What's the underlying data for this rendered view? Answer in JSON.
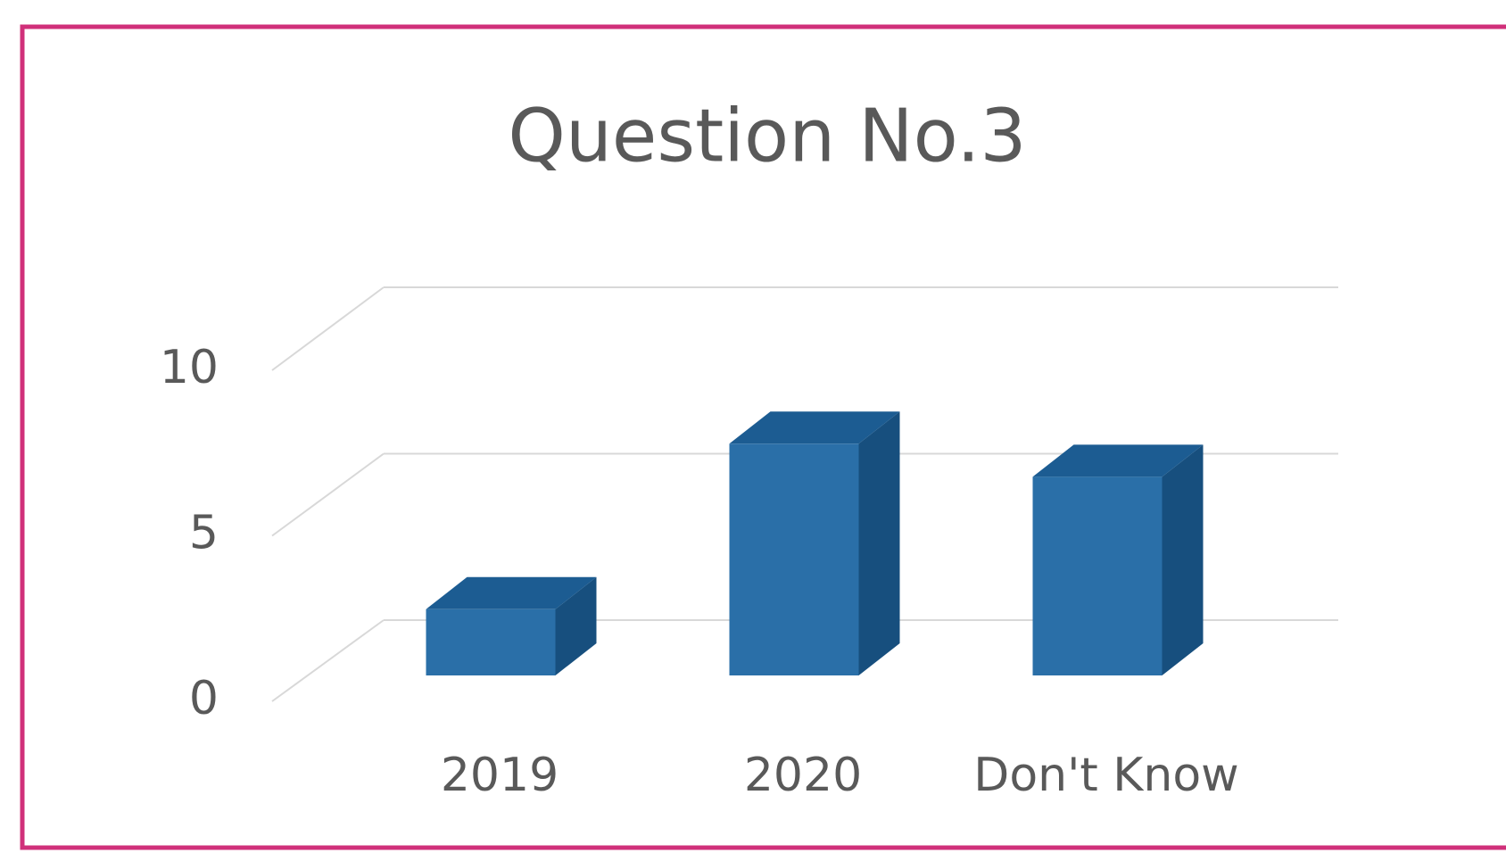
{
  "chart_data": {
    "type": "bar3d",
    "title": "Question No.3",
    "categories": [
      "2019",
      "2020",
      "Don't Know"
    ],
    "values": [
      2,
      7,
      6
    ],
    "color": "#2a6fa8",
    "ylim": [
      0,
      10
    ],
    "yticks": [
      0,
      5,
      10
    ],
    "grid": true
  }
}
